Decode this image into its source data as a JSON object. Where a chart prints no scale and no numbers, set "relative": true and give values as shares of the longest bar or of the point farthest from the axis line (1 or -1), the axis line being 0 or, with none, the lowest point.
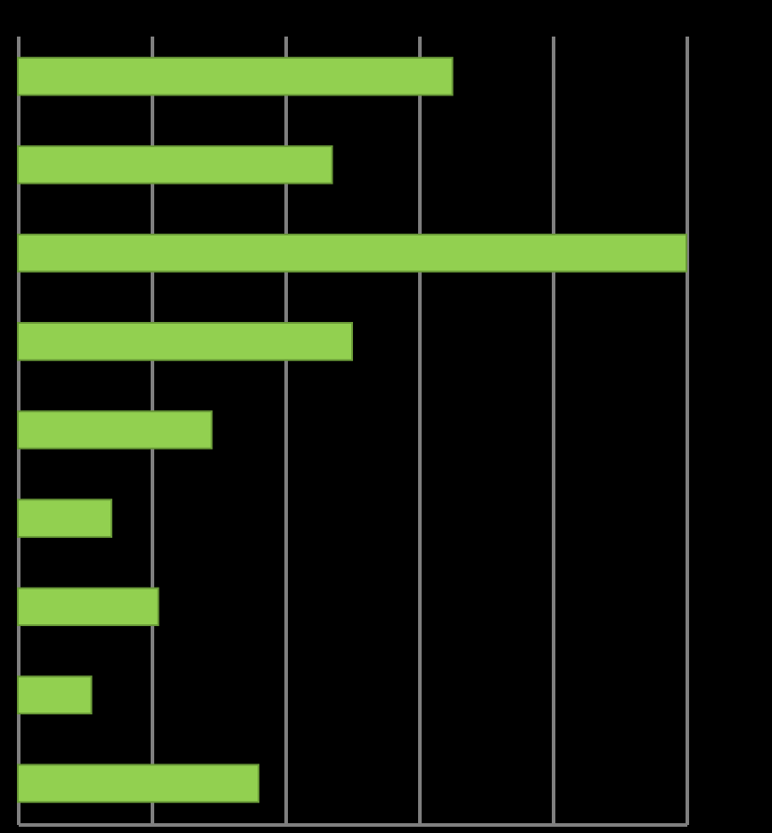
{
  "chart_data": {
    "type": "bar",
    "orientation": "horizontal",
    "relative": true,
    "grid": "x",
    "categories": [
      null,
      null,
      null,
      null,
      null,
      null,
      null,
      null,
      null
    ],
    "values": [
      0.65,
      0.47,
      1,
      0.5,
      0.29,
      0.14,
      0.21,
      0.11,
      0.36
    ],
    "color": "#92d050"
  }
}
